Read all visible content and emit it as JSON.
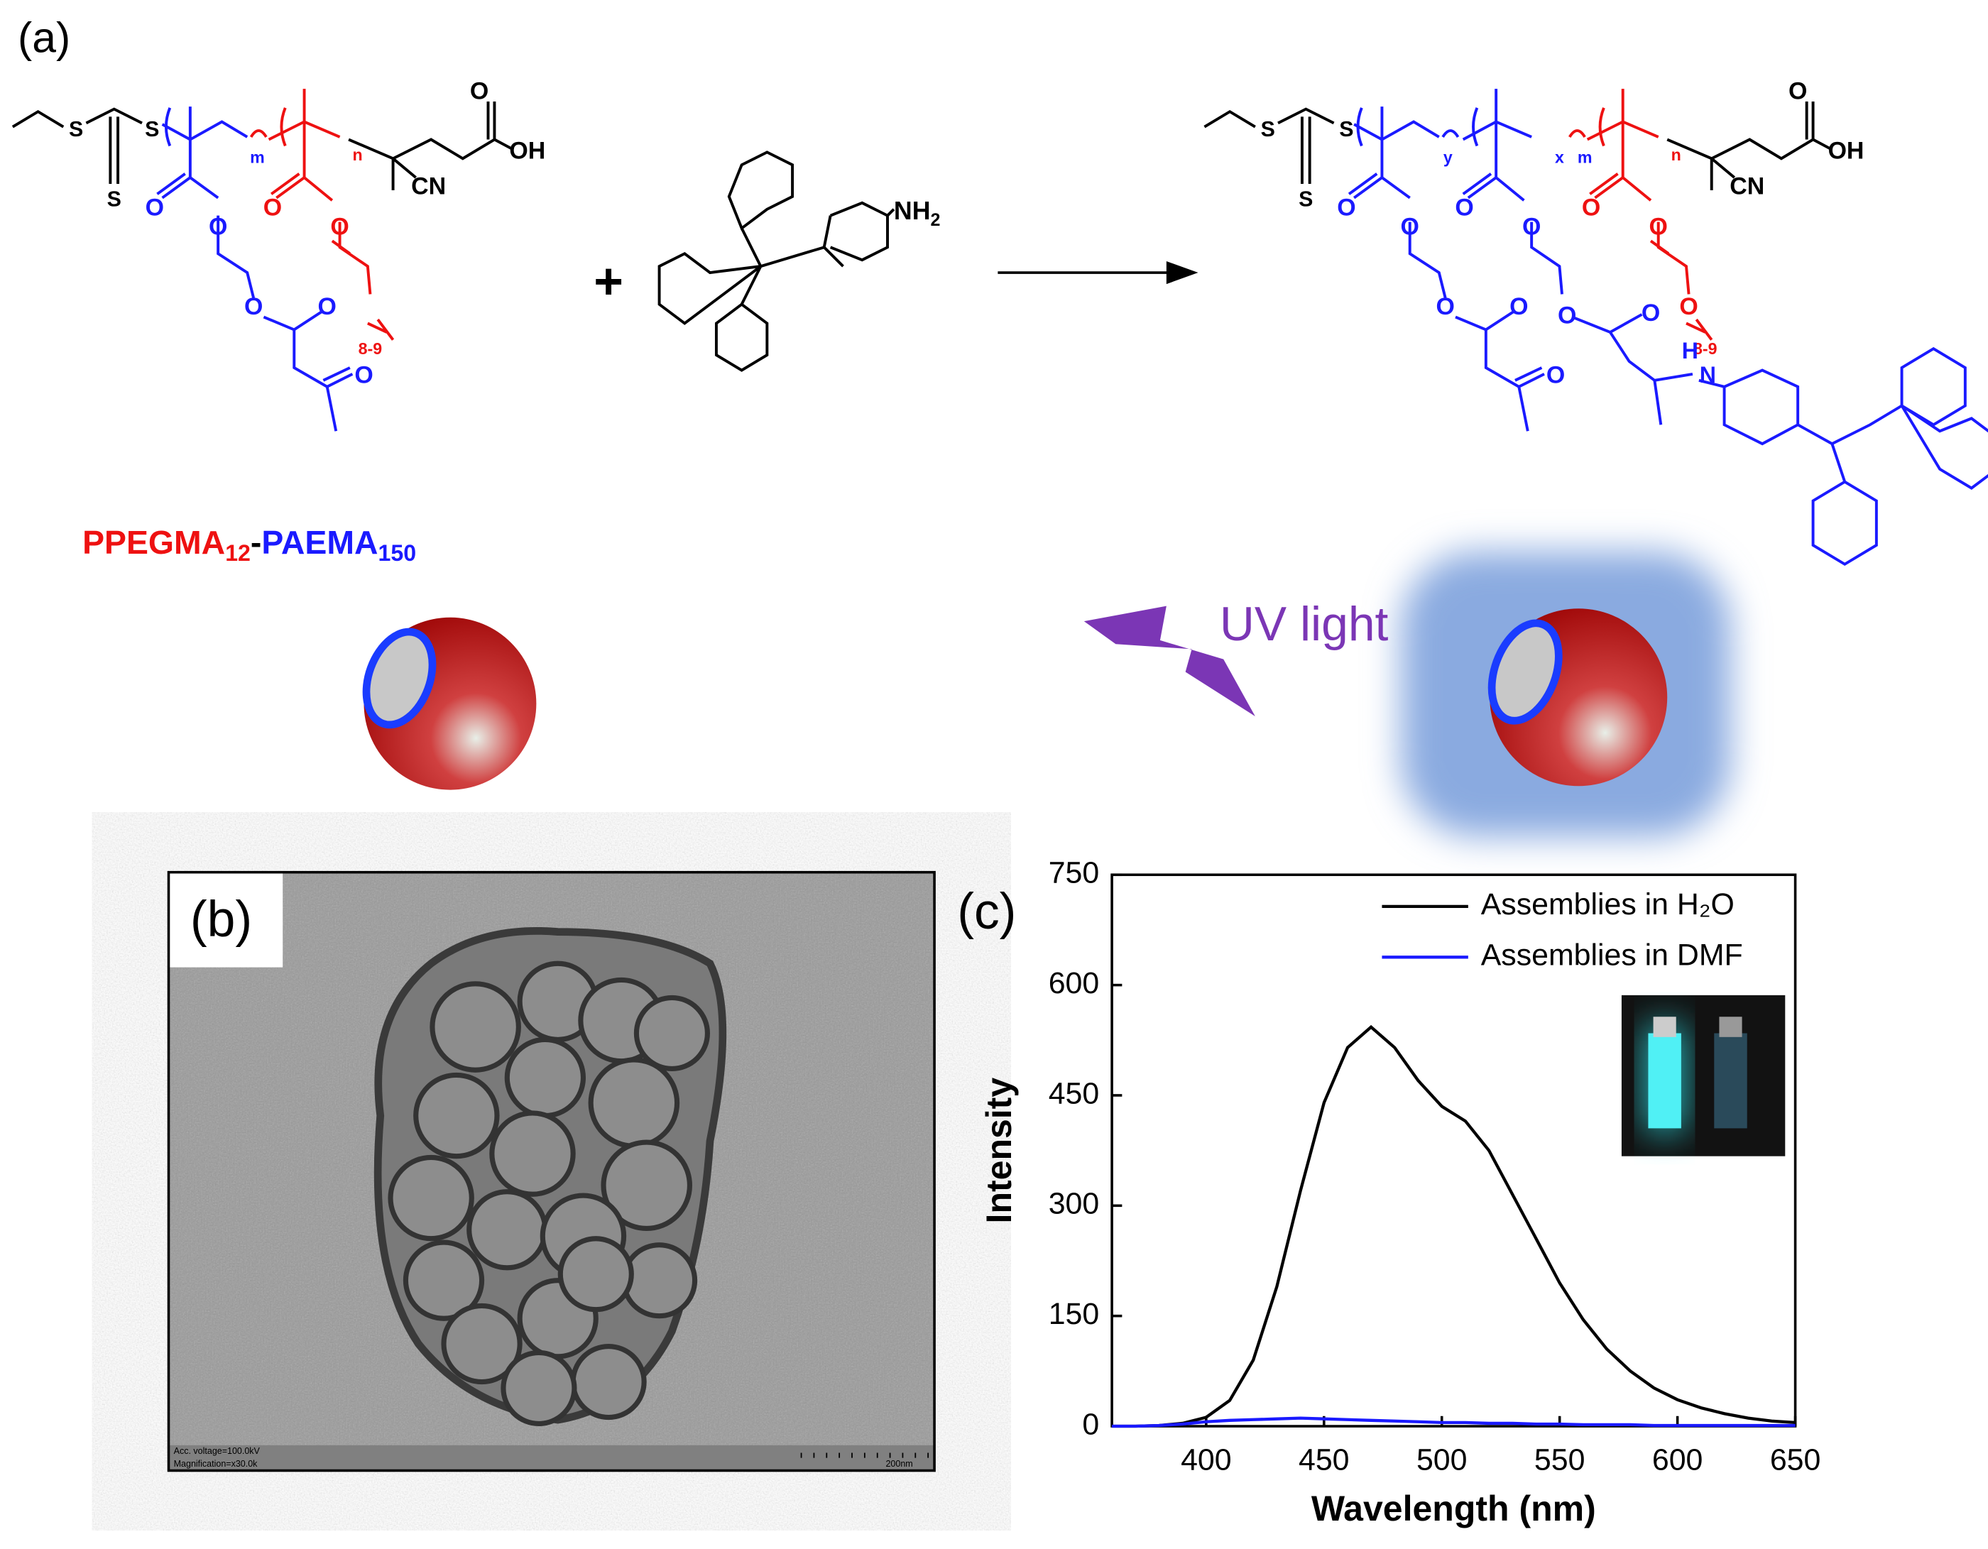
{
  "panel_labels": {
    "a": "(a)",
    "b": "(b)",
    "c": "(c)"
  },
  "scheme": {
    "labels": [
      "S",
      "S",
      "S",
      "m",
      "n",
      "CN",
      "OH",
      "O",
      "O",
      "O",
      "O",
      "O",
      "O",
      "O",
      "O",
      "8-9",
      "S",
      "S",
      "S",
      "y",
      "x",
      "m",
      "n",
      "CN",
      "OH",
      "O",
      "O",
      "O",
      "O",
      "O",
      "O",
      "O",
      "O",
      "O",
      "O",
      "O",
      "O",
      "O",
      "8-9",
      "H",
      "N"
    ],
    "amine": [
      "NH",
      "2"
    ],
    "plus": "+",
    "polymer_name": [
      "PPEGMA",
      "12",
      "-",
      "PAEMA",
      "150"
    ],
    "uv": "UV light"
  },
  "tem": {
    "voltage": "Acc. voltage=100.0kV",
    "magnification": "Magnification=x30.0k",
    "scale": "200nm"
  },
  "chart_data": {
    "type": "line",
    "xlabel": "Wavelength (nm)",
    "ylabel": "Intensity",
    "x": [
      360,
      370,
      380,
      390,
      400,
      410,
      420,
      430,
      440,
      450,
      460,
      470,
      480,
      490,
      500,
      510,
      520,
      530,
      540,
      550,
      560,
      570,
      580,
      590,
      600,
      610,
      620,
      630,
      640,
      650
    ],
    "series": [
      {
        "name": "Assemblies in H₂O",
        "color": "#000000",
        "values": [
          0,
          0,
          1,
          4,
          12,
          35,
          90,
          190,
          320,
          440,
          515,
          543,
          515,
          470,
          435,
          415,
          375,
          315,
          255,
          195,
          145,
          105,
          75,
          52,
          36,
          25,
          17,
          11,
          7,
          5
        ]
      },
      {
        "name": "Assemblies in DMF",
        "color": "#1a1aff",
        "values": [
          0,
          0,
          1,
          3,
          6,
          8,
          9,
          10,
          11,
          10,
          9,
          8,
          7,
          6,
          5,
          5,
          4,
          4,
          3,
          3,
          2,
          2,
          2,
          1,
          1,
          1,
          1,
          1,
          1,
          1
        ]
      }
    ],
    "xlim": [
      360,
      650
    ],
    "xticks": [
      400,
      450,
      500,
      550,
      600,
      650
    ],
    "ylim": [
      0,
      750
    ],
    "yticks": [
      0,
      150,
      300,
      450,
      600,
      750
    ],
    "legend_loc": "upper right"
  }
}
